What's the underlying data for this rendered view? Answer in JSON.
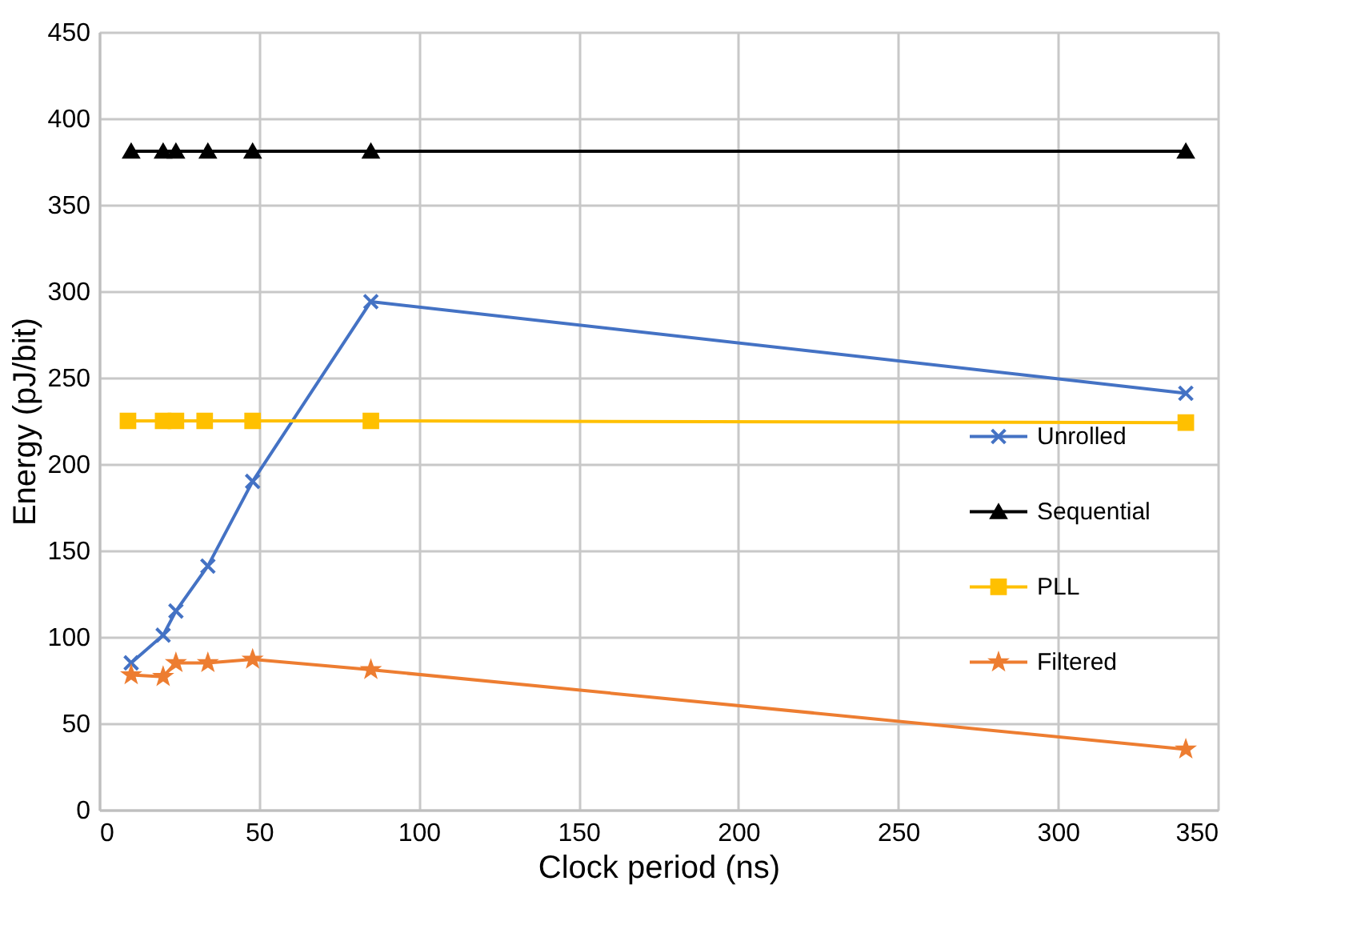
{
  "chart_data": {
    "type": "line",
    "xlabel": "Clock period (ns)",
    "ylabel": "Energy (pJ/bit)",
    "xlim": [
      0,
      350
    ],
    "xticks": [
      0,
      50,
      100,
      150,
      200,
      250,
      300,
      350
    ],
    "ylim": [
      0,
      450
    ],
    "yticks": [
      0,
      50,
      100,
      150,
      200,
      250,
      300,
      350,
      400,
      450
    ],
    "grid": true,
    "legend": "right",
    "series": [
      {
        "name": "Unrolled",
        "color": "#4472c4",
        "marker": "cross",
        "x": [
          10,
          20,
          24,
          34,
          48,
          85,
          340
        ],
        "values": [
          85,
          101,
          115,
          141,
          190,
          294,
          241
        ]
      },
      {
        "name": "Sequential",
        "color": "#000000",
        "marker": "triangle",
        "x": [
          10,
          20,
          24,
          34,
          48,
          85,
          340
        ],
        "values": [
          381,
          381,
          381,
          381,
          381,
          381,
          381
        ]
      },
      {
        "name": "PLL",
        "color": "#ffc000",
        "marker": "square",
        "x": [
          9,
          20,
          24,
          33,
          48,
          85,
          340
        ],
        "values": [
          225,
          225,
          225,
          225,
          225,
          225,
          224
        ]
      },
      {
        "name": "Filtered",
        "color": "#ed7d31",
        "marker": "star",
        "x": [
          10,
          20,
          24,
          34,
          48,
          85,
          340
        ],
        "values": [
          78,
          77,
          85,
          85,
          87,
          81,
          35
        ]
      }
    ]
  }
}
